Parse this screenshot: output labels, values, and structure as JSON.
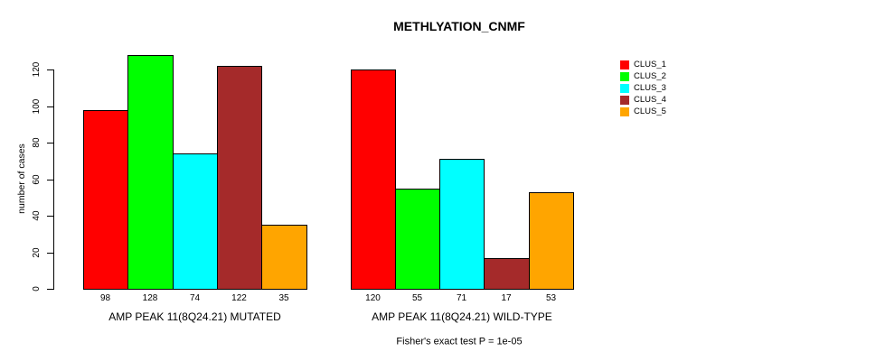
{
  "chart_data": {
    "type": "bar",
    "title": "METHLYATION_CNMF",
    "ylabel": "number of cases",
    "xlabel": "",
    "ylim": [
      0,
      120
    ],
    "yticks": [
      0,
      20,
      40,
      60,
      80,
      100,
      120
    ],
    "grid": false,
    "legend_position": "right",
    "show_bar_values": true,
    "series_labels": [
      "CLUS_1",
      "CLUS_2",
      "CLUS_3",
      "CLUS_4",
      "CLUS_5"
    ],
    "colors": [
      "#FF0000",
      "#00FF00",
      "#00FFFF",
      "#A52A2A",
      "#FFA500"
    ],
    "categories": [
      "AMP PEAK 11(8Q24.21) MUTATED",
      "AMP PEAK 11(8Q24.21) WILD-TYPE"
    ],
    "groups": [
      {
        "label": "AMP PEAK 11(8Q24.21) MUTATED",
        "values": [
          98,
          128,
          74,
          122,
          35
        ]
      },
      {
        "label": "AMP PEAK 11(8Q24.21) WILD-TYPE",
        "values": [
          120,
          55,
          71,
          17,
          53
        ]
      }
    ],
    "annotation": "Fisher's exact test P = 1e-05"
  }
}
